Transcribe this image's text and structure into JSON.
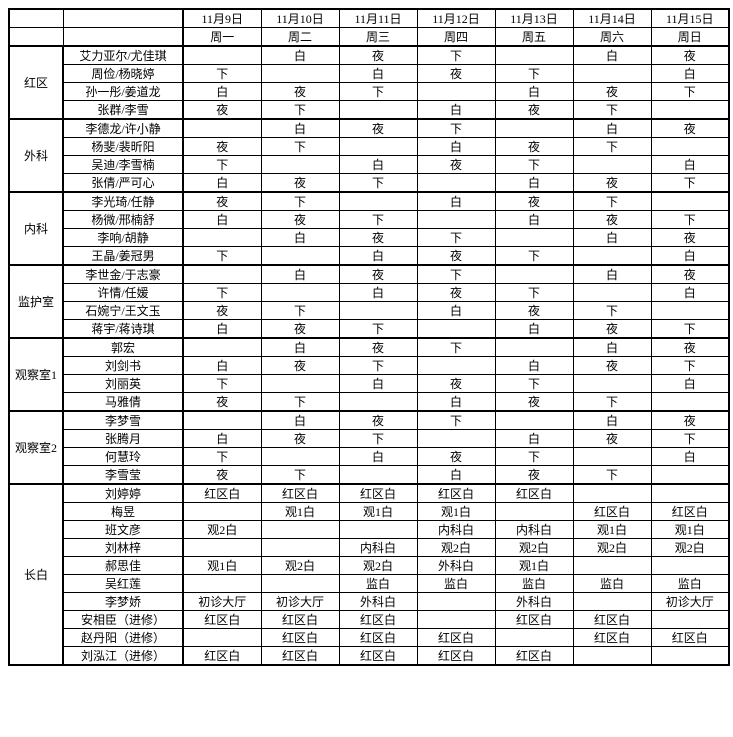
{
  "dates": [
    "11月9日",
    "11月10日",
    "11月11日",
    "11月12日",
    "11月13日",
    "11月14日",
    "11月15日"
  ],
  "weekdays": [
    "周一",
    "周二",
    "周三",
    "周四",
    "周五",
    "周六",
    "周日"
  ],
  "sections": [
    {
      "name": "红区",
      "rows": [
        {
          "name": "艾力亚尔/尤佳琪",
          "cells": [
            "",
            "白",
            "夜",
            "下",
            "",
            "白",
            "夜"
          ]
        },
        {
          "name": "周俭/杨晓婷",
          "cells": [
            "下",
            "",
            "白",
            "夜",
            "下",
            "",
            "白"
          ]
        },
        {
          "name": "孙一彤/姜道龙",
          "cells": [
            "白",
            "夜",
            "下",
            "",
            "白",
            "夜",
            "下"
          ]
        },
        {
          "name": "张群/李雪",
          "cells": [
            "夜",
            "下",
            "",
            "白",
            "夜",
            "下",
            ""
          ]
        }
      ]
    },
    {
      "name": "外科",
      "rows": [
        {
          "name": "李德龙/许小静",
          "cells": [
            "",
            "白",
            "夜",
            "下",
            "",
            "白",
            "夜"
          ]
        },
        {
          "name": "杨斐/裴昕阳",
          "cells": [
            "夜",
            "下",
            "",
            "白",
            "夜",
            "下",
            ""
          ]
        },
        {
          "name": "吴迪/李雪楠",
          "cells": [
            "下",
            "",
            "白",
            "夜",
            "下",
            "",
            "白"
          ]
        },
        {
          "name": "张倩/严可心",
          "cells": [
            "白",
            "夜",
            "下",
            "",
            "白",
            "夜",
            "下"
          ]
        }
      ]
    },
    {
      "name": "内科",
      "rows": [
        {
          "name": "李光琦/任静",
          "cells": [
            "夜",
            "下",
            "",
            "白",
            "夜",
            "下",
            ""
          ]
        },
        {
          "name": "杨微/邢楠舒",
          "cells": [
            "白",
            "夜",
            "下",
            "",
            "白",
            "夜",
            "下"
          ]
        },
        {
          "name": "李响/胡静",
          "cells": [
            "",
            "白",
            "夜",
            "下",
            "",
            "白",
            "夜"
          ]
        },
        {
          "name": "王晶/姜冠男",
          "cells": [
            "下",
            "",
            "白",
            "夜",
            "下",
            "",
            "白"
          ]
        }
      ]
    },
    {
      "name": "监护室",
      "rows": [
        {
          "name": "李世金/于志豪",
          "cells": [
            "",
            "白",
            "夜",
            "下",
            "",
            "白",
            "夜"
          ]
        },
        {
          "name": "许情/任媛",
          "cells": [
            "下",
            "",
            "白",
            "夜",
            "下",
            "",
            "白"
          ]
        },
        {
          "name": "石婉宁/王文玉",
          "cells": [
            "夜",
            "下",
            "",
            "白",
            "夜",
            "下",
            ""
          ]
        },
        {
          "name": "蒋宇/蒋诗琪",
          "cells": [
            "白",
            "夜",
            "下",
            "",
            "白",
            "夜",
            "下"
          ]
        }
      ]
    },
    {
      "name": "观察室1",
      "rows": [
        {
          "name": "郭宏",
          "cells": [
            "",
            "白",
            "夜",
            "下",
            "",
            "白",
            "夜"
          ]
        },
        {
          "name": "刘剑书",
          "cells": [
            "白",
            "夜",
            "下",
            "",
            "白",
            "夜",
            "下"
          ]
        },
        {
          "name": "刘丽英",
          "cells": [
            "下",
            "",
            "白",
            "夜",
            "下",
            "",
            "白"
          ]
        },
        {
          "name": "马雅倩",
          "cells": [
            "夜",
            "下",
            "",
            "白",
            "夜",
            "下",
            ""
          ]
        }
      ]
    },
    {
      "name": "观察室2",
      "rows": [
        {
          "name": "李梦雪",
          "cells": [
            "",
            "白",
            "夜",
            "下",
            "",
            "白",
            "夜"
          ]
        },
        {
          "name": "张腾月",
          "cells": [
            "白",
            "夜",
            "下",
            "",
            "白",
            "夜",
            "下"
          ]
        },
        {
          "name": "何慧玲",
          "cells": [
            "下",
            "",
            "白",
            "夜",
            "下",
            "",
            "白"
          ]
        },
        {
          "name": "李雪莹",
          "cells": [
            "夜",
            "下",
            "",
            "白",
            "夜",
            "下",
            ""
          ]
        }
      ]
    },
    {
      "name": "长白",
      "rows": [
        {
          "name": "刘婷婷",
          "cells": [
            "红区白",
            "红区白",
            "红区白",
            "红区白",
            "红区白",
            "",
            ""
          ]
        },
        {
          "name": "梅昱",
          "cells": [
            "",
            "观1白",
            "观1白",
            "观1白",
            "",
            "红区白",
            "红区白"
          ]
        },
        {
          "name": "班文彦",
          "cells": [
            "观2白",
            "",
            "",
            "内科白",
            "内科白",
            "观1白",
            "观1白"
          ]
        },
        {
          "name": "刘林梓",
          "cells": [
            "",
            "",
            "内科白",
            "观2白",
            "观2白",
            "观2白",
            "观2白"
          ]
        },
        {
          "name": "郝思佳",
          "cells": [
            "观1白",
            "观2白",
            "观2白",
            "外科白",
            "观1白",
            "",
            ""
          ]
        },
        {
          "name": "吴红莲",
          "cells": [
            "",
            "",
            "监白",
            "监白",
            "监白",
            "监白",
            "监白"
          ]
        },
        {
          "name": "李梦娇",
          "cells": [
            "初诊大厅",
            "初诊大厅",
            "外科白",
            "",
            "外科白",
            "",
            "初诊大厅"
          ]
        },
        {
          "name": "安相臣（进修）",
          "cells": [
            "红区白",
            "红区白",
            "红区白",
            "",
            "红区白",
            "红区白",
            ""
          ]
        },
        {
          "name": "赵丹阳（进修）",
          "cells": [
            "",
            "红区白",
            "红区白",
            "红区白",
            "",
            "红区白",
            "红区白"
          ]
        },
        {
          "name": "刘泓江（进修）",
          "cells": [
            "红区白",
            "红区白",
            "红区白",
            "红区白",
            "红区白",
            "",
            ""
          ]
        }
      ]
    }
  ]
}
